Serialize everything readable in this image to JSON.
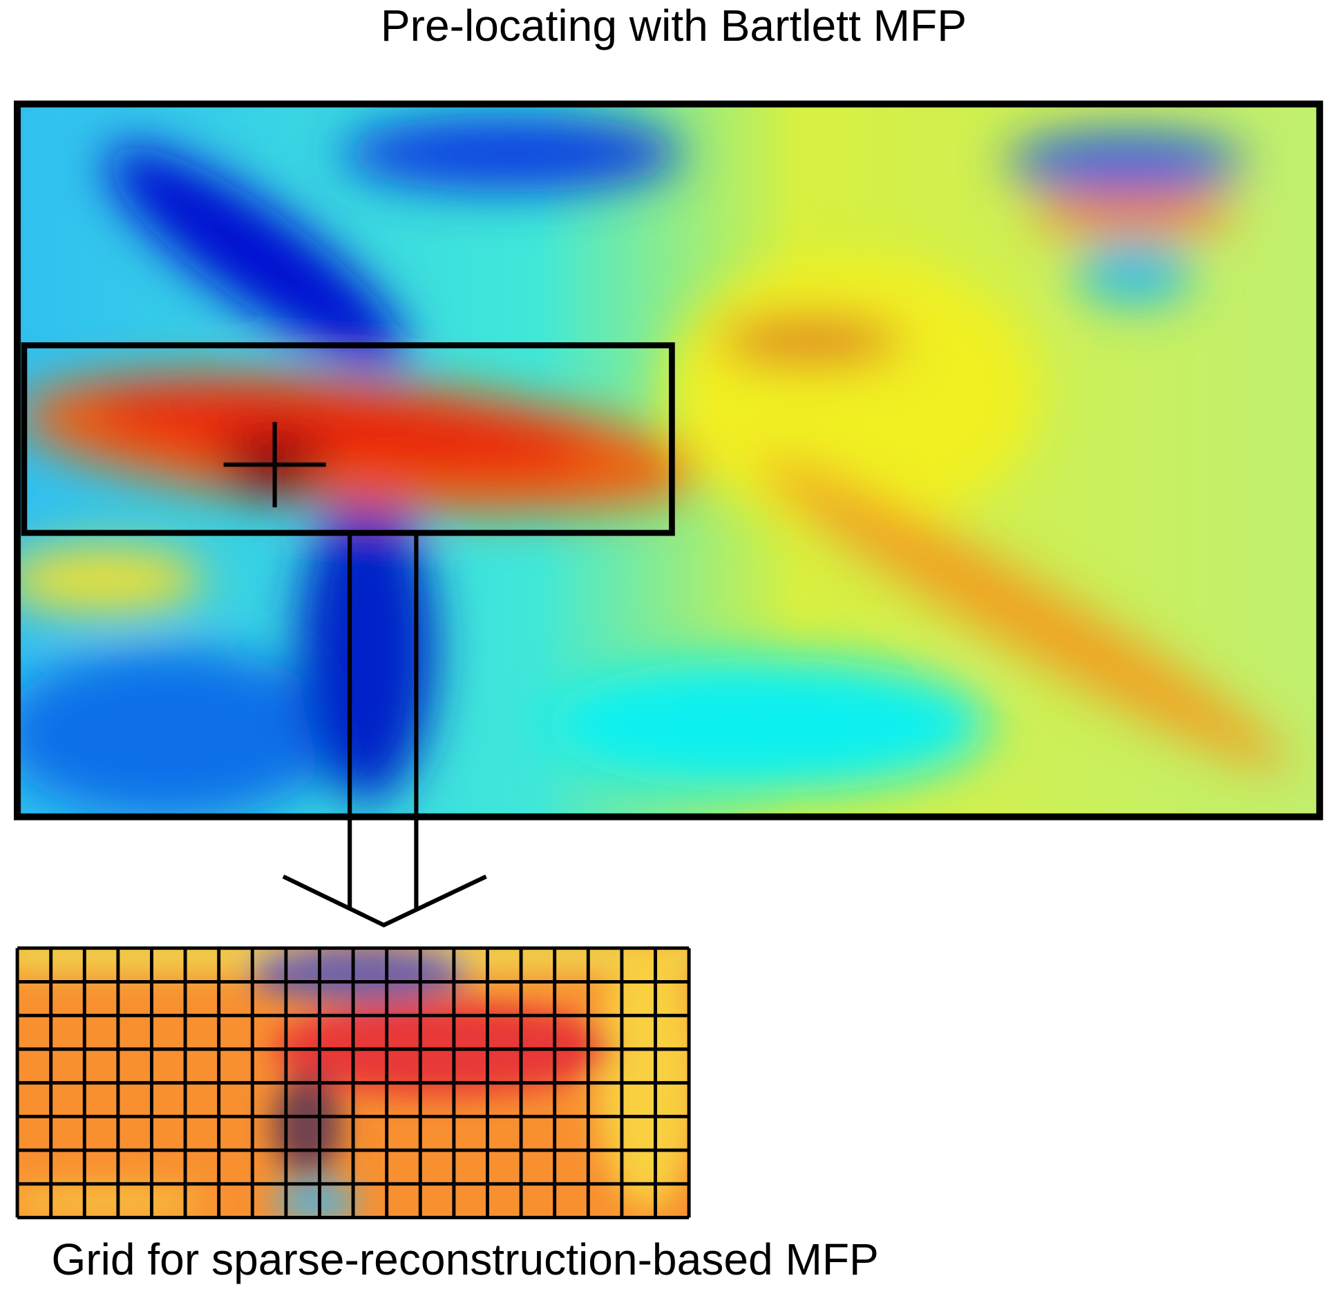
{
  "title": "Pre-locating with Bartlett MFP",
  "caption": "Grid for sparse-reconstruction-based MFP"
}
